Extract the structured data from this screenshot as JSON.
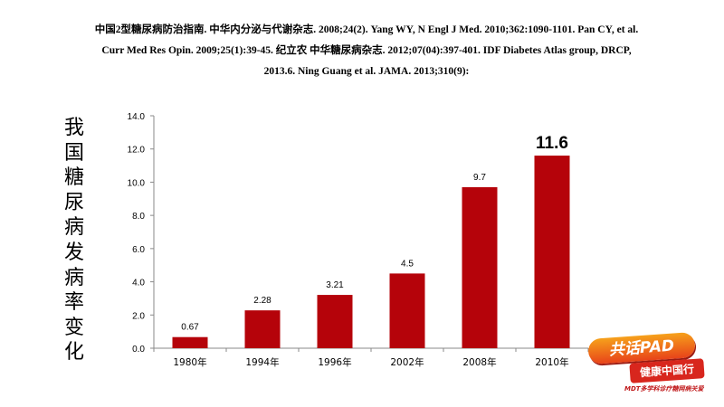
{
  "references": {
    "line1": "中国2型糖尿病防治指南. 中华内分泌与代谢杂志. 2008;24(2). Yang WY, N Engl J Med. 2010;362:1090-1101.  Pan CY, et al.",
    "line2": "Curr Med Res Opin. 2009;25(1):39-45.  纪立农 中华糖尿病杂志. 2012;07(04):397-401. IDF Diabetes Atlas group, DRCP,",
    "line3": "2013.6. Ning Guang et al. JAMA. 2013;310(9):"
  },
  "side_title": "我国糖尿病发病率变化",
  "badge": {
    "main": "共话PAD",
    "sub": "健康中国行",
    "foot": "MDT多学科诊疗糖网病关爱"
  },
  "colors": {
    "bar": "#b5030a",
    "axis": "#8a8a8a"
  },
  "chart_data": {
    "type": "bar",
    "categories": [
      "1980年",
      "1994年",
      "1996年",
      "2002年",
      "2008年",
      "2010年"
    ],
    "values": [
      0.67,
      2.28,
      3.21,
      4.5,
      9.7,
      11.6
    ],
    "value_labels": [
      "0.67",
      "2.28",
      "3.21",
      "4.5",
      "9.7",
      "11.6"
    ],
    "ylim": [
      0,
      14
    ],
    "yticks": [
      "0.0",
      "2.0",
      "4.0",
      "6.0",
      "8.0",
      "10.0",
      "12.0",
      "14.0"
    ],
    "grid": false,
    "emphasized_value_index": 5
  }
}
